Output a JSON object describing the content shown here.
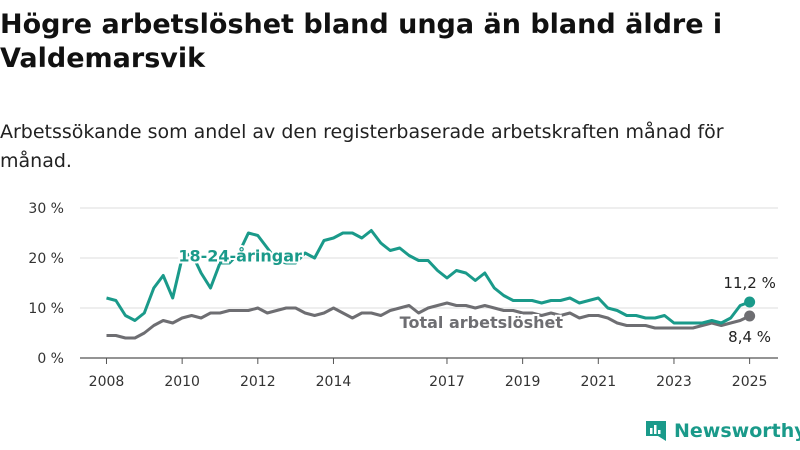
{
  "title": "Högre arbetslöshet bland unga än bland äldre i Valdemarsvik",
  "subtitle": "Arbetssökande som andel av den registerbaserade arbetskraften månad för månad.",
  "brand": {
    "name": "Newsworthy",
    "color": "#1a9a8a"
  },
  "chart_data": {
    "type": "line",
    "x_ticks": [
      "2008",
      "2010",
      "2012",
      "2014",
      "2017",
      "2019",
      "2021",
      "2023",
      "2025"
    ],
    "y_ticks": [
      "0 %",
      "10 %",
      "20 %",
      "30 %"
    ],
    "ylim": [
      0,
      30
    ],
    "xlim": [
      2007.5,
      2025.5
    ],
    "grid": true,
    "series": [
      {
        "name": "18-24-åringar",
        "color": "#1a9a8a",
        "end_label": "11,2 %",
        "x": [
          2008.0,
          2008.25,
          2008.5,
          2008.75,
          2009.0,
          2009.25,
          2009.5,
          2009.75,
          2010.0,
          2010.25,
          2010.5,
          2010.75,
          2011.0,
          2011.25,
          2011.5,
          2011.75,
          2012.0,
          2012.25,
          2012.5,
          2012.75,
          2013.0,
          2013.25,
          2013.5,
          2013.75,
          2014.0,
          2014.25,
          2014.5,
          2014.75,
          2015.0,
          2015.25,
          2015.5,
          2015.75,
          2016.0,
          2016.25,
          2016.5,
          2016.75,
          2017.0,
          2017.25,
          2017.5,
          2017.75,
          2018.0,
          2018.25,
          2018.5,
          2018.75,
          2019.0,
          2019.25,
          2019.5,
          2019.75,
          2020.0,
          2020.25,
          2020.5,
          2020.75,
          2021.0,
          2021.25,
          2021.5,
          2021.75,
          2022.0,
          2022.25,
          2022.5,
          2022.75,
          2023.0,
          2023.25,
          2023.5,
          2023.75,
          2024.0,
          2024.25,
          2024.5,
          2024.75,
          2025.0
        ],
        "y": [
          12,
          11.5,
          8.5,
          7.5,
          9,
          14,
          16.5,
          12,
          20,
          21,
          17,
          14,
          19,
          19,
          21,
          25,
          24.5,
          22,
          19.5,
          19,
          19,
          21,
          20,
          23.5,
          24,
          25,
          25,
          24,
          25.5,
          23,
          21.5,
          22,
          20.5,
          19.5,
          19.5,
          17.5,
          16,
          17.5,
          17,
          15.5,
          17,
          14,
          12.5,
          11.5,
          11.5,
          11.5,
          11,
          11.5,
          11.5,
          12,
          11,
          11.5,
          12,
          10,
          9.5,
          8.5,
          8.5,
          8,
          8,
          8.5,
          7,
          7,
          7,
          7,
          7.5,
          7,
          8,
          10.5,
          11.2
        ]
      },
      {
        "name": "Total arbetslöshet",
        "color": "#6e6e72",
        "end_label": "8,4 %",
        "x": [
          2008.0,
          2008.25,
          2008.5,
          2008.75,
          2009.0,
          2009.25,
          2009.5,
          2009.75,
          2010.0,
          2010.25,
          2010.5,
          2010.75,
          2011.0,
          2011.25,
          2011.5,
          2011.75,
          2012.0,
          2012.25,
          2012.5,
          2012.75,
          2013.0,
          2013.25,
          2013.5,
          2013.75,
          2014.0,
          2014.25,
          2014.5,
          2014.75,
          2015.0,
          2015.25,
          2015.5,
          2015.75,
          2016.0,
          2016.25,
          2016.5,
          2016.75,
          2017.0,
          2017.25,
          2017.5,
          2017.75,
          2018.0,
          2018.25,
          2018.5,
          2018.75,
          2019.0,
          2019.25,
          2019.5,
          2019.75,
          2020.0,
          2020.25,
          2020.5,
          2020.75,
          2021.0,
          2021.25,
          2021.5,
          2021.75,
          2022.0,
          2022.25,
          2022.5,
          2022.75,
          2023.0,
          2023.25,
          2023.5,
          2023.75,
          2024.0,
          2024.25,
          2024.5,
          2024.75,
          2025.0
        ],
        "y": [
          4.5,
          4.5,
          4,
          4,
          5,
          6.5,
          7.5,
          7,
          8,
          8.5,
          8,
          9,
          9,
          9.5,
          9.5,
          9.5,
          10,
          9,
          9.5,
          10,
          10,
          9,
          8.5,
          9,
          10,
          9,
          8,
          9,
          9,
          8.5,
          9.5,
          10,
          10.5,
          9,
          10,
          10.5,
          11,
          10.5,
          10.5,
          10,
          10.5,
          10,
          9.5,
          9.5,
          9,
          9,
          8.5,
          9,
          8.5,
          9,
          8,
          8.5,
          8.5,
          8,
          7,
          6.5,
          6.5,
          6.5,
          6,
          6,
          6,
          6,
          6,
          6.5,
          7,
          6.5,
          7,
          7.5,
          8.4
        ]
      }
    ]
  }
}
